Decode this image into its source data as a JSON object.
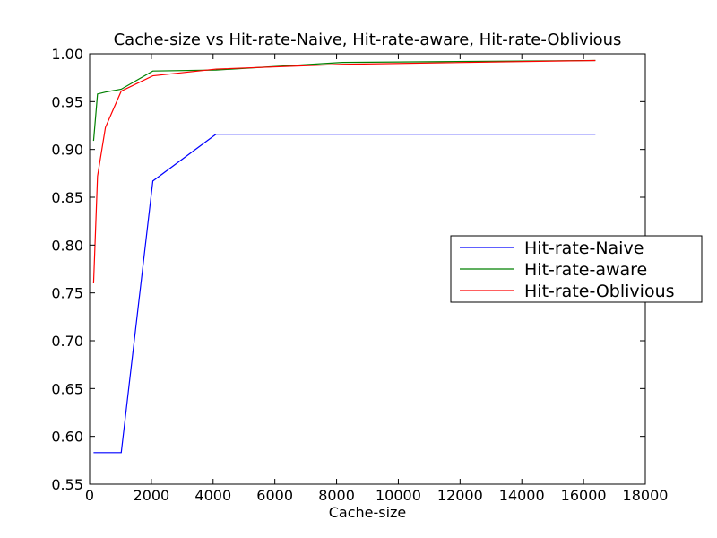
{
  "chart_data": {
    "type": "line",
    "title": "Cache-size vs Hit-rate-Naive, Hit-rate-aware, Hit-rate-Oblivious",
    "xlabel": "Cache-size",
    "ylabel": "",
    "xlim": [
      0,
      18000
    ],
    "ylim": [
      0.55,
      1.0
    ],
    "xticks": [
      0,
      2000,
      4000,
      6000,
      8000,
      10000,
      12000,
      14000,
      16000,
      18000
    ],
    "yticks": [
      0.55,
      0.6,
      0.65,
      0.7,
      0.75,
      0.8,
      0.85,
      0.9,
      0.95,
      1.0
    ],
    "xtick_labels": [
      "0",
      "2000",
      "4000",
      "6000",
      "8000",
      "10000",
      "12000",
      "14000",
      "16000",
      "18000"
    ],
    "ytick_labels": [
      "0.55",
      "0.60",
      "0.65",
      "0.70",
      "0.75",
      "0.80",
      "0.85",
      "0.90",
      "0.95",
      "1.00"
    ],
    "grid": false,
    "legend_position": "center-right",
    "series": [
      {
        "name": "Hit-rate-Naive",
        "color": "#0000ff",
        "x": [
          128,
          256,
          512,
          1024,
          2048,
          4096,
          8192,
          16384
        ],
        "y": [
          0.583,
          0.583,
          0.583,
          0.583,
          0.867,
          0.916,
          0.916,
          0.916
        ]
      },
      {
        "name": "Hit-rate-aware",
        "color": "#008000",
        "x": [
          128,
          256,
          512,
          1024,
          2048,
          4096,
          8192,
          16384
        ],
        "y": [
          0.909,
          0.958,
          0.96,
          0.963,
          0.982,
          0.983,
          0.991,
          0.993
        ]
      },
      {
        "name": "Hit-rate-Oblivious",
        "color": "#ff0000",
        "x": [
          128,
          256,
          512,
          1024,
          2048,
          4096,
          8192,
          16384
        ],
        "y": [
          0.76,
          0.872,
          0.923,
          0.961,
          0.977,
          0.984,
          0.989,
          0.993
        ]
      }
    ]
  }
}
